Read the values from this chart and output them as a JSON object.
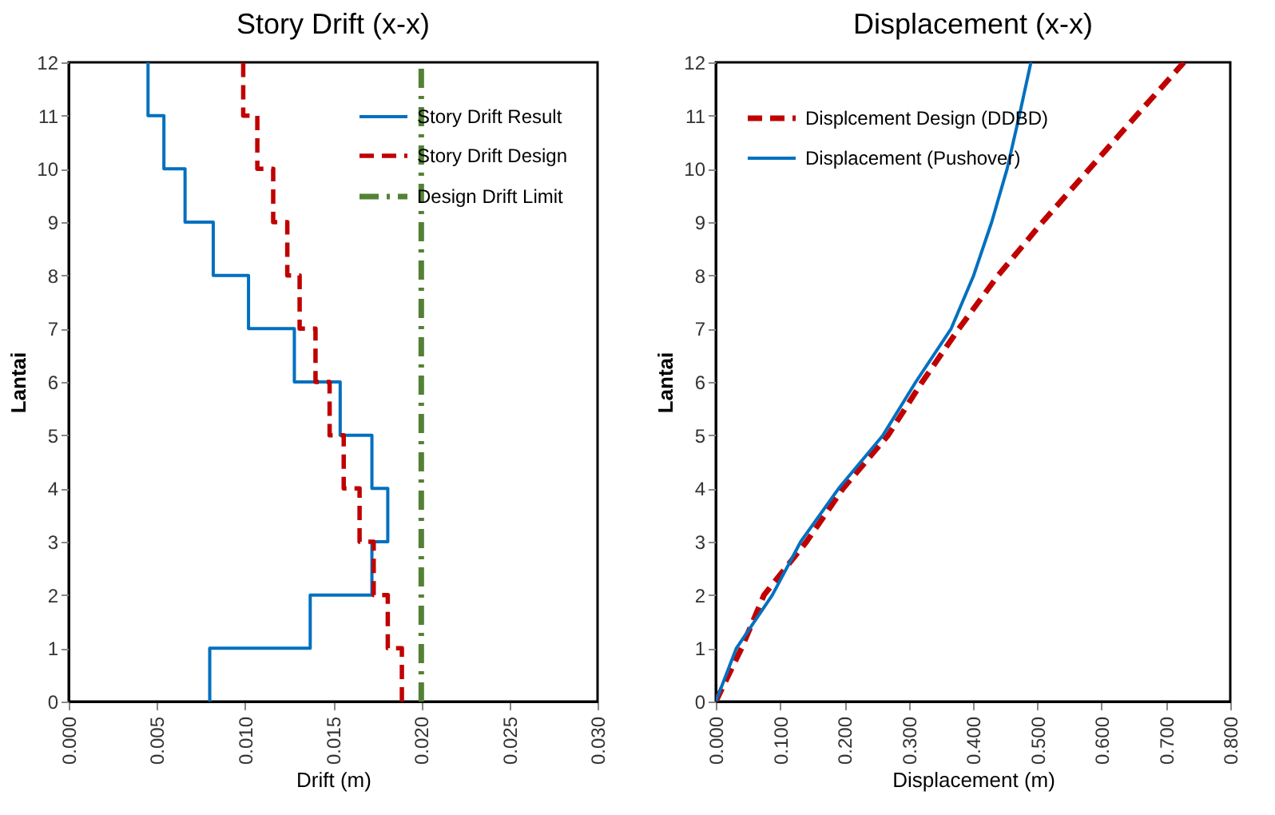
{
  "chart_data": [
    {
      "type": "line",
      "title": "Story Drift (x-x)",
      "xlabel": "Drift (m)",
      "ylabel": "Lantai",
      "xlim": [
        0,
        0.03
      ],
      "xticks": [
        {
          "value": 0,
          "label": "0.000"
        },
        {
          "value": 0.005,
          "label": "0.005"
        },
        {
          "value": 0.01,
          "label": "0.010"
        },
        {
          "value": 0.015,
          "label": "0.015"
        },
        {
          "value": 0.02,
          "label": "0.020"
        },
        {
          "value": 0.025,
          "label": "0.025"
        },
        {
          "value": 0.03,
          "label": "0.030"
        }
      ],
      "ylim": [
        0,
        12
      ],
      "yticks": [
        0,
        1,
        2,
        3,
        4,
        5,
        6,
        7,
        8,
        9,
        10,
        11,
        12
      ],
      "legend": "top right",
      "grid": false,
      "series": [
        {
          "name": "Story Drift Result",
          "color": "#0070c0",
          "line_style": "solid",
          "x": [
            0.008,
            0.008,
            0.0137,
            0.0137,
            0.0172,
            0.0172,
            0.0181,
            0.0181,
            0.0172,
            0.0172,
            0.0154,
            0.0154,
            0.0128,
            0.0128,
            0.0102,
            0.0102,
            0.0082,
            0.0082,
            0.0066,
            0.0066,
            0.0054,
            0.0054,
            0.0045,
            0.0045
          ],
          "values": [
            0,
            1,
            1,
            2,
            2,
            3,
            3,
            4,
            4,
            5,
            5,
            6,
            6,
            7,
            7,
            8,
            8,
            9,
            9,
            10,
            10,
            11,
            11,
            12
          ]
        },
        {
          "name": "Story Drift Design",
          "color": "#c00000",
          "line_style": "dashed",
          "x": [
            0.0189,
            0.0189,
            0.0181,
            0.0181,
            0.0173,
            0.0173,
            0.0165,
            0.0165,
            0.0156,
            0.0156,
            0.0148,
            0.0148,
            0.014,
            0.014,
            0.0131,
            0.0131,
            0.0124,
            0.0124,
            0.0116,
            0.0116,
            0.0107,
            0.0107,
            0.0099,
            0.0099
          ],
          "values": [
            0,
            1,
            1,
            2,
            2,
            3,
            3,
            4,
            4,
            5,
            5,
            6,
            6,
            7,
            7,
            8,
            8,
            9,
            9,
            10,
            10,
            11,
            11,
            12
          ]
        },
        {
          "name": "Design Drift Limit",
          "color": "#548235",
          "line_style": "dashdot",
          "x": [
            0.02,
            0.02
          ],
          "values": [
            0,
            12
          ]
        }
      ]
    },
    {
      "type": "line",
      "title": "Displacement (x-x)",
      "xlabel": "Displacement (m)",
      "ylabel": "Lantai",
      "xlim": [
        0,
        0.8
      ],
      "xticks": [
        {
          "value": 0,
          "label": "0.000"
        },
        {
          "value": 0.1,
          "label": "0.100"
        },
        {
          "value": 0.2,
          "label": "0.200"
        },
        {
          "value": 0.3,
          "label": "0.300"
        },
        {
          "value": 0.4,
          "label": "0.400"
        },
        {
          "value": 0.5,
          "label": "0.500"
        },
        {
          "value": 0.6,
          "label": "0.600"
        },
        {
          "value": 0.7,
          "label": "0.700"
        },
        {
          "value": 0.8,
          "label": "0.800"
        }
      ],
      "ylim": [
        0,
        12
      ],
      "yticks": [
        0,
        1,
        2,
        3,
        4,
        5,
        6,
        7,
        8,
        9,
        10,
        11,
        12
      ],
      "legend": "top left",
      "grid": false,
      "series": [
        {
          "name": "Displcement Design (DDBD)",
          "color": "#c00000",
          "line_style": "dashed",
          "x": [
            0,
            0.04,
            0.075,
            0.141,
            0.198,
            0.268,
            0.321,
            0.378,
            0.439,
            0.508,
            0.581,
            0.654,
            0.728
          ],
          "values": [
            0,
            1,
            2,
            3,
            4,
            5,
            6,
            7,
            8,
            9,
            10,
            11,
            12
          ]
        },
        {
          "name": "Displacement (Pushover)",
          "color": "#0070c0",
          "line_style": "solid",
          "x": [
            0,
            0.032,
            0.088,
            0.132,
            0.191,
            0.26,
            0.311,
            0.366,
            0.401,
            0.429,
            0.453,
            0.472,
            0.49
          ],
          "values": [
            0,
            1,
            2,
            3,
            4,
            5,
            6,
            7,
            8,
            9,
            10,
            11,
            12
          ]
        }
      ]
    }
  ]
}
